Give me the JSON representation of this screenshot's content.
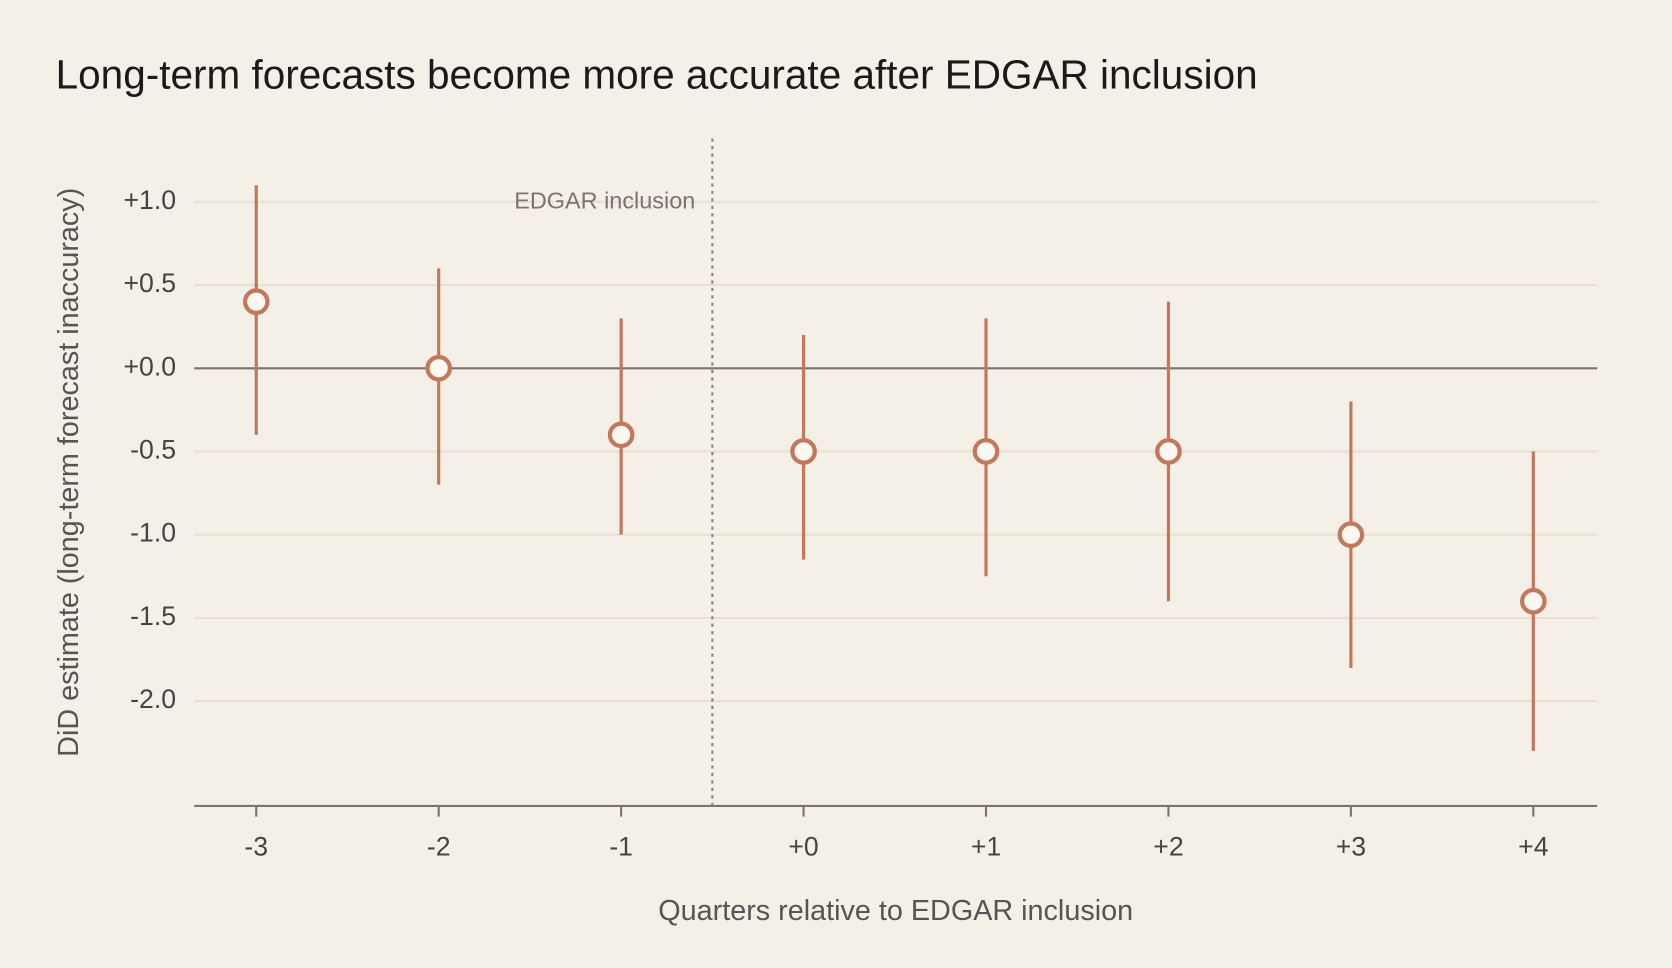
{
  "chart_data": {
    "type": "errorbar",
    "title": "Long-term forecasts become more accurate after EDGAR inclusion",
    "xlabel": "Quarters relative to EDGAR inclusion",
    "ylabel": "DiD estimate (long-term forecast inaccuracy)",
    "x": [
      -3,
      -2,
      -1,
      0,
      1,
      2,
      3,
      4
    ],
    "values": [
      0.4,
      0.0,
      -0.4,
      -0.5,
      -0.5,
      -0.5,
      -1.0,
      -1.4
    ],
    "lower": [
      -0.4,
      -0.7,
      -1.0,
      -1.15,
      -1.25,
      -1.4,
      -1.8,
      -2.3
    ],
    "upper": [
      1.1,
      0.6,
      0.3,
      0.2,
      0.3,
      0.4,
      -0.2,
      -0.5
    ],
    "color": "#c4785a",
    "xlim": [
      -3.34,
      4.35
    ],
    "ylim": [
      -2.63,
      1.38
    ],
    "xticks": [
      -3,
      -2,
      -1,
      {
        "value": 0,
        "label": "+0"
      },
      {
        "value": 1,
        "label": "+1"
      },
      {
        "value": 2,
        "label": "+2"
      },
      {
        "value": 3,
        "label": "+3"
      },
      {
        "value": 4,
        "label": "+4"
      }
    ],
    "yticks": [
      {
        "value": 1,
        "label": "+1.0"
      },
      {
        "value": 0.5,
        "label": "+0.5"
      },
      {
        "value": 0,
        "label": "+0.0"
      },
      {
        "value": -0.5,
        "label": "-0.5"
      },
      {
        "value": -1,
        "label": "-1.0"
      },
      {
        "value": -1.5,
        "label": "-1.5"
      },
      {
        "value": -2,
        "label": "-2.0"
      }
    ],
    "grid": true,
    "hline": 0,
    "vline": -0.5,
    "vline_label": "EDGAR inclusion"
  }
}
